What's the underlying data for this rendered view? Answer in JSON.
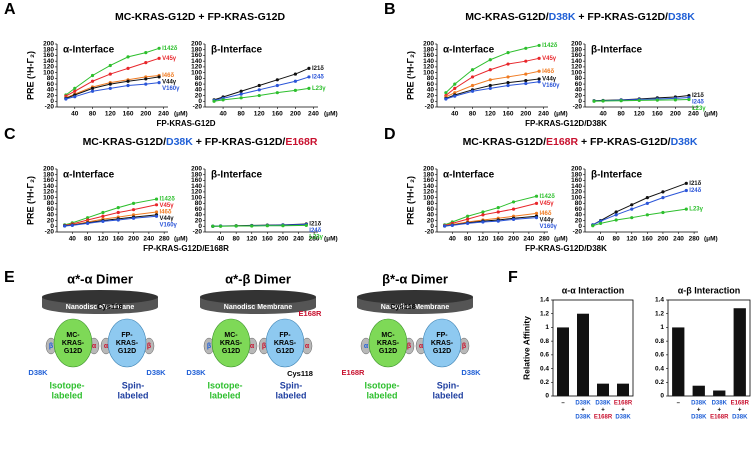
{
  "panels": [
    {
      "letter": "A",
      "title": [
        {
          "text": "MC-KRAS-G12D + FP-KRAS-G12D",
          "color": "#000000"
        }
      ],
      "xlabel": "FP-KRAS-G12D"
    },
    {
      "letter": "B",
      "title": [
        {
          "text": "MC-KRAS-G12D/",
          "color": "#000000"
        },
        {
          "text": "D38K",
          "color": "#1f5fd6"
        },
        {
          "text": " + FP-KRAS-G12D/",
          "color": "#000000"
        },
        {
          "text": "D38K",
          "color": "#1f5fd6"
        }
      ],
      "xlabel": "FP-KRAS-G12D/D38K"
    },
    {
      "letter": "C",
      "title": [
        {
          "text": "MC-KRAS-G12D/",
          "color": "#000000"
        },
        {
          "text": "D38K",
          "color": "#1f5fd6"
        },
        {
          "text": " + FP-KRAS-G12D/",
          "color": "#000000"
        },
        {
          "text": "E168R",
          "color": "#c8102e"
        }
      ],
      "xlabel": "FP-KRAS-G12D/E168R"
    },
    {
      "letter": "D",
      "title": [
        {
          "text": "MC-KRAS-G12D/",
          "color": "#000000"
        },
        {
          "text": "E168R",
          "color": "#c8102e"
        },
        {
          "text": " + FP-KRAS-G12D/",
          "color": "#000000"
        },
        {
          "text": "D38K",
          "color": "#1f5fd6"
        }
      ],
      "xlabel": "FP-KRAS-G12D/D38K"
    }
  ],
  "chart_data": [
    {
      "type": "line",
      "title": "α-Interface",
      "ylabel": "PRE (¹H-Γ₂)",
      "xunit": "(μM)",
      "x": [
        20,
        40,
        80,
        120,
        160,
        200,
        230
      ],
      "xlim": [
        0,
        250
      ],
      "xticks": [
        40,
        80,
        120,
        160,
        200,
        240
      ],
      "ylim": [
        -20,
        200
      ],
      "yticks": [
        -20,
        0,
        20,
        40,
        60,
        80,
        100,
        120,
        140,
        160,
        180,
        200
      ],
      "series": [
        {
          "name": "I142δ",
          "color": "#2dbf2d",
          "values": [
            22,
            45,
            90,
            125,
            155,
            170,
            185
          ]
        },
        {
          "name": "V45γ",
          "color": "#e8262b",
          "values": [
            18,
            35,
            70,
            95,
            115,
            135,
            150
          ]
        },
        {
          "name": "I46δ",
          "color": "#f07b22",
          "values": [
            12,
            25,
            50,
            65,
            75,
            85,
            90
          ]
        },
        {
          "name": "V44γ",
          "color": "#111111",
          "values": [
            10,
            22,
            45,
            60,
            70,
            78,
            85
          ]
        },
        {
          "name": "V160γ",
          "color": "#2b55d8",
          "values": [
            8,
            16,
            35,
            45,
            55,
            60,
            65
          ]
        }
      ]
    },
    {
      "type": "line",
      "title": "β-Interface",
      "xunit": "(μM)",
      "x": [
        20,
        40,
        80,
        120,
        160,
        200,
        230
      ],
      "xlim": [
        0,
        250
      ],
      "xticks": [
        40,
        80,
        120,
        160,
        200,
        240
      ],
      "ylim": [
        -20,
        200
      ],
      "yticks": [
        -20,
        0,
        20,
        40,
        60,
        80,
        100,
        120,
        140,
        160,
        180,
        200
      ],
      "series": [
        {
          "name": "I21δ",
          "color": "#111111",
          "values": [
            5,
            15,
            35,
            55,
            75,
            95,
            115
          ]
        },
        {
          "name": "I24δ",
          "color": "#2b55d8",
          "values": [
            3,
            10,
            25,
            40,
            55,
            70,
            85
          ]
        },
        {
          "name": "L23γ",
          "color": "#2dbf2d",
          "values": [
            0,
            5,
            12,
            20,
            30,
            38,
            45
          ]
        }
      ]
    },
    {
      "type": "line",
      "title": "α-Interface",
      "ylabel": "PRE (¹H-Γ₂)",
      "xunit": "(μM)",
      "x": [
        20,
        40,
        80,
        120,
        160,
        200,
        230
      ],
      "xlim": [
        0,
        250
      ],
      "xticks": [
        40,
        80,
        120,
        160,
        200,
        240
      ],
      "ylim": [
        -20,
        200
      ],
      "yticks": [
        -20,
        0,
        20,
        40,
        60,
        80,
        100,
        120,
        140,
        160,
        180,
        200
      ],
      "series": [
        {
          "name": "I142δ",
          "color": "#2dbf2d",
          "values": [
            30,
            60,
            110,
            145,
            170,
            185,
            195
          ]
        },
        {
          "name": "V45γ",
          "color": "#e8262b",
          "values": [
            20,
            45,
            85,
            110,
            130,
            140,
            150
          ]
        },
        {
          "name": "I46δ",
          "color": "#f07b22",
          "values": [
            15,
            30,
            55,
            75,
            85,
            95,
            105
          ]
        },
        {
          "name": "V44γ",
          "color": "#111111",
          "values": [
            10,
            22,
            40,
            55,
            65,
            72,
            78
          ]
        },
        {
          "name": "V160γ",
          "color": "#2b55d8",
          "values": [
            8,
            18,
            35,
            45,
            55,
            62,
            68
          ]
        }
      ]
    },
    {
      "type": "line",
      "title": "β-Interface",
      "xunit": "(μM)",
      "x": [
        20,
        40,
        80,
        120,
        160,
        200,
        230
      ],
      "xlim": [
        0,
        250
      ],
      "xticks": [
        40,
        80,
        120,
        160,
        200,
        240
      ],
      "ylim": [
        -20,
        200
      ],
      "yticks": [
        -20,
        0,
        20,
        40,
        60,
        80,
        100,
        120,
        140,
        160,
        180,
        200
      ],
      "series": [
        {
          "name": "I21δ",
          "color": "#111111",
          "values": [
            2,
            3,
            5,
            8,
            12,
            15,
            20
          ]
        },
        {
          "name": "I24δ",
          "color": "#2b55d8",
          "values": [
            1,
            2,
            4,
            6,
            8,
            10,
            13
          ]
        },
        {
          "name": "L23γ",
          "color": "#2dbf2d",
          "values": [
            0,
            1,
            2,
            3,
            4,
            5,
            6
          ]
        }
      ]
    },
    {
      "type": "line",
      "title": "α-Interface",
      "ylabel": "PRE (¹H-Γ₂)",
      "xunit": "(μM)",
      "x": [
        20,
        40,
        80,
        120,
        160,
        200,
        260
      ],
      "xlim": [
        0,
        290
      ],
      "xticks": [
        40,
        80,
        120,
        160,
        200,
        240,
        280
      ],
      "ylim": [
        -20,
        200
      ],
      "yticks": [
        -20,
        0,
        20,
        40,
        60,
        80,
        100,
        120,
        140,
        160,
        180,
        200
      ],
      "series": [
        {
          "name": "I142δ",
          "color": "#2dbf2d",
          "values": [
            5,
            12,
            30,
            48,
            65,
            80,
            95
          ]
        },
        {
          "name": "V45γ",
          "color": "#e8262b",
          "values": [
            3,
            8,
            22,
            35,
            48,
            58,
            75
          ]
        },
        {
          "name": "I46δ",
          "color": "#f07b22",
          "values": [
            2,
            5,
            15,
            25,
            32,
            40,
            50
          ]
        },
        {
          "name": "V44γ",
          "color": "#111111",
          "values": [
            2,
            4,
            12,
            20,
            26,
            32,
            40
          ]
        },
        {
          "name": "V160γ",
          "color": "#2b55d8",
          "values": [
            1,
            3,
            10,
            17,
            22,
            28,
            35
          ]
        }
      ]
    },
    {
      "type": "line",
      "title": "β-Interface",
      "xunit": "(μM)",
      "x": [
        20,
        40,
        80,
        120,
        160,
        200,
        260
      ],
      "xlim": [
        0,
        290
      ],
      "xticks": [
        40,
        80,
        120,
        160,
        200,
        240,
        280
      ],
      "ylim": [
        -20,
        200
      ],
      "yticks": [
        -20,
        0,
        20,
        40,
        60,
        80,
        100,
        120,
        140,
        160,
        180,
        200
      ],
      "series": [
        {
          "name": "I21δ",
          "color": "#111111",
          "values": [
            0,
            1,
            2,
            3,
            4,
            5,
            8
          ]
        },
        {
          "name": "I24δ",
          "color": "#2b55d8",
          "values": [
            0,
            1,
            1,
            2,
            3,
            4,
            6
          ]
        },
        {
          "name": "L23γ",
          "color": "#2dbf2d",
          "values": [
            0,
            0,
            1,
            1,
            2,
            2,
            3
          ]
        }
      ]
    },
    {
      "type": "line",
      "title": "α-Interface",
      "ylabel": "PRE (¹H-Γ₂)",
      "xunit": "(μM)",
      "x": [
        20,
        40,
        80,
        120,
        160,
        200,
        260
      ],
      "xlim": [
        0,
        290
      ],
      "xticks": [
        40,
        80,
        120,
        160,
        200,
        240,
        280
      ],
      "ylim": [
        -20,
        200
      ],
      "yticks": [
        -20,
        0,
        20,
        40,
        60,
        80,
        100,
        120,
        140,
        160,
        180,
        200
      ],
      "series": [
        {
          "name": "I142δ",
          "color": "#2dbf2d",
          "values": [
            5,
            15,
            35,
            50,
            65,
            85,
            105
          ]
        },
        {
          "name": "V45γ",
          "color": "#e8262b",
          "values": [
            3,
            10,
            25,
            40,
            50,
            60,
            80
          ]
        },
        {
          "name": "I46δ",
          "color": "#f07b22",
          "values": [
            2,
            6,
            15,
            22,
            28,
            35,
            45
          ]
        },
        {
          "name": "V44γ",
          "color": "#111111",
          "values": [
            1,
            4,
            12,
            18,
            22,
            28,
            35
          ]
        },
        {
          "name": "V160γ",
          "color": "#2b55d8",
          "values": [
            1,
            3,
            10,
            15,
            18,
            24,
            30
          ]
        }
      ]
    },
    {
      "type": "line",
      "title": "β-Interface",
      "xunit": "(μM)",
      "x": [
        20,
        40,
        80,
        120,
        160,
        200,
        260
      ],
      "xlim": [
        0,
        290
      ],
      "xticks": [
        40,
        80,
        120,
        160,
        200,
        240,
        280
      ],
      "ylim": [
        -20,
        200
      ],
      "yticks": [
        -20,
        0,
        20,
        40,
        60,
        80,
        100,
        120,
        140,
        160,
        180,
        200
      ],
      "series": [
        {
          "name": "I21δ",
          "color": "#111111",
          "values": [
            5,
            20,
            50,
            75,
            100,
            120,
            150
          ]
        },
        {
          "name": "I24δ",
          "color": "#2b55d8",
          "values": [
            5,
            18,
            40,
            60,
            80,
            100,
            125
          ]
        },
        {
          "name": "L23γ",
          "color": "#2dbf2d",
          "values": [
            2,
            10,
            22,
            30,
            40,
            48,
            60
          ]
        }
      ]
    },
    {
      "type": "bar",
      "title": "α-α Interaction",
      "ylabel": "Relative Affinity",
      "color": "#111111",
      "ylim": [
        0,
        1.4
      ],
      "yticks": [
        0,
        0.2,
        0.4,
        0.6,
        0.8,
        1,
        1.2,
        1.4
      ],
      "categories": [
        [
          {
            "text": "–",
            "color": "#000000"
          }
        ],
        [
          {
            "text": "D38K",
            "color": "#1f5fd6"
          },
          {
            "text": "+",
            "color": "#000000"
          },
          {
            "text": "D38K",
            "color": "#1f5fd6"
          }
        ],
        [
          {
            "text": "D38K",
            "color": "#1f5fd6"
          },
          {
            "text": "+",
            "color": "#000000"
          },
          {
            "text": "E168R",
            "color": "#c8102e"
          }
        ],
        [
          {
            "text": "E168R",
            "color": "#c8102e"
          },
          {
            "text": "+",
            "color": "#000000"
          },
          {
            "text": "D38K",
            "color": "#1f5fd6"
          }
        ]
      ],
      "values": [
        1.0,
        1.2,
        0.18,
        0.18
      ]
    },
    {
      "type": "bar",
      "title": "α-β Interaction",
      "color": "#111111",
      "ylim": [
        0,
        1.4
      ],
      "yticks": [
        0,
        0.2,
        0.4,
        0.6,
        0.8,
        1,
        1.2,
        1.4
      ],
      "categories": [
        [
          {
            "text": "–",
            "color": "#000000"
          }
        ],
        [
          {
            "text": "D38K",
            "color": "#1f5fd6"
          },
          {
            "text": "+",
            "color": "#000000"
          },
          {
            "text": "D38K",
            "color": "#1f5fd6"
          }
        ],
        [
          {
            "text": "D38K",
            "color": "#1f5fd6"
          },
          {
            "text": "+",
            "color": "#000000"
          },
          {
            "text": "E168R",
            "color": "#c8102e"
          }
        ],
        [
          {
            "text": "E168R",
            "color": "#c8102e"
          },
          {
            "text": "+",
            "color": "#000000"
          },
          {
            "text": "D38K",
            "color": "#1f5fd6"
          }
        ]
      ],
      "values": [
        1.0,
        0.15,
        0.08,
        1.28
      ]
    }
  ],
  "affinity_letter": "F",
  "diagram": {
    "letter": "E",
    "dimers": [
      {
        "title": "α*-α Dimer",
        "membrane": "Nanodisc Membrane",
        "left": [
          "MC-",
          "KRAS-",
          "G12D"
        ],
        "right": [
          "FP-",
          "KRAS-",
          "G12D"
        ],
        "left_caption": [
          "Isotope-",
          "labeled"
        ],
        "right_caption": [
          "Spin-",
          "labeled"
        ],
        "lobes": [
          "β",
          "α",
          "α",
          "β"
        ],
        "tags": [
          {
            "text": "Cys118",
            "color": "#000000"
          },
          {
            "text": "D38K",
            "color": "#1f5fd6"
          },
          {
            "text": "D38K",
            "color": "#1f5fd6"
          }
        ]
      },
      {
        "title": "α*-β Dimer",
        "membrane": "Nanodisc Membrane",
        "left": [
          "MC-",
          "KRAS-",
          "G12D"
        ],
        "right": [
          "FP-",
          "KRAS-",
          "G12D"
        ],
        "left_caption": [
          "Isotope-",
          "labeled"
        ],
        "right_caption": [
          "Spin-",
          "labeled"
        ],
        "lobes": [
          "β",
          "α",
          "β",
          "α"
        ],
        "tags": [
          {
            "text": "E168R",
            "color": "#c8102e"
          },
          {
            "text": "Cys118",
            "color": "#000000"
          },
          {
            "text": "D38K",
            "color": "#1f5fd6"
          }
        ]
      },
      {
        "title": "β*-α Dimer",
        "membrane": "Nanodisc Membrane",
        "left": [
          "MC-",
          "KRAS-",
          "G12D"
        ],
        "right": [
          "FP-",
          "KRAS-",
          "G12D"
        ],
        "left_caption": [
          "Isotope-",
          "labeled"
        ],
        "right_caption": [
          "Spin-",
          "labeled"
        ],
        "lobes": [
          "α",
          "β",
          "α",
          "β"
        ],
        "tags": [
          {
            "text": "Cys118",
            "color": "#000000"
          },
          {
            "text": "E168R",
            "color": "#c8102e"
          },
          {
            "text": "D38K",
            "color": "#1f5fd6"
          }
        ]
      }
    ]
  }
}
